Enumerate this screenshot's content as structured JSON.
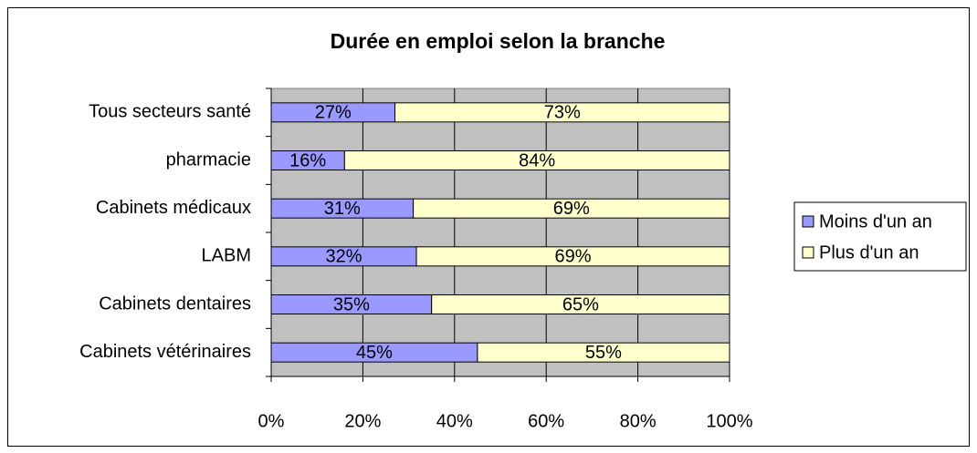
{
  "chart_data": {
    "type": "bar",
    "orientation": "horizontal",
    "stacked": "percent",
    "title": "Durée en emploi selon la branche",
    "categories": [
      "Tous secteurs santé",
      "pharmacie",
      "Cabinets médicaux",
      "LABM",
      "Cabinets dentaires",
      "Cabinets vétérinaires"
    ],
    "series": [
      {
        "name": "Moins d'un an",
        "color": "#9999ff",
        "values": [
          27,
          16,
          31,
          32,
          35,
          45
        ],
        "value_labels": [
          "27%",
          "16%",
          "31%",
          "32%",
          "35%",
          "45%"
        ]
      },
      {
        "name": "Plus d'un an",
        "color": "#ffffcc",
        "values": [
          73,
          84,
          69,
          69,
          65,
          55
        ],
        "value_labels": [
          "73%",
          "84%",
          "69%",
          "69%",
          "65%",
          "55%"
        ]
      }
    ],
    "xlim": [
      0,
      100
    ],
    "xticks": [
      {
        "value": 0,
        "label": "0%"
      },
      {
        "value": 20,
        "label": "20%"
      },
      {
        "value": 40,
        "label": "40%"
      },
      {
        "value": 60,
        "label": "60%"
      },
      {
        "value": 80,
        "label": "80%"
      },
      {
        "value": 100,
        "label": "100%"
      }
    ],
    "grid": true,
    "plot_background": "#c0c0c0",
    "legend": "right"
  }
}
